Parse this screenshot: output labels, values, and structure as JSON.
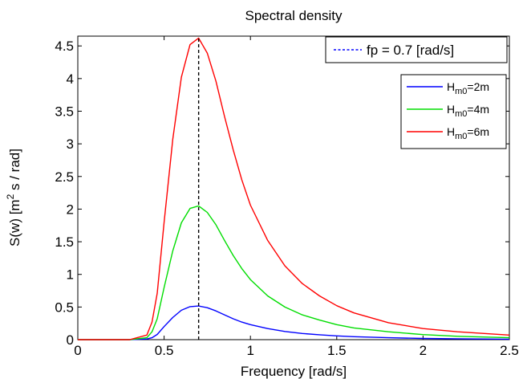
{
  "chart_data": {
    "type": "line",
    "title": "Spectral density",
    "xlabel": "Frequency [rad/s]",
    "ylabel": {
      "prefix": "S(w) [m",
      "sup": "2",
      "suffix": " s / rad]"
    },
    "xlim": [
      0,
      2.5
    ],
    "ylim": [
      0,
      4.65
    ],
    "xticks": [
      0,
      0.5,
      1,
      1.5,
      2,
      2.5
    ],
    "xtick_labels": [
      "0",
      "0.5",
      "1",
      "1.5",
      "2",
      "2.5"
    ],
    "yticks": [
      0,
      0.5,
      1,
      1.5,
      2,
      2.5,
      3,
      3.5,
      4,
      4.5
    ],
    "ytick_labels": [
      "0",
      "0.5",
      "1",
      "1.5",
      "2",
      "2.5",
      "3",
      "3.5",
      "4",
      "4.5"
    ],
    "grid": false,
    "vertical_line": {
      "x": 0.7,
      "label": "fp = 0.7 [rad/s]",
      "color": "#000000",
      "legend_color": "#0000ff",
      "style": "dashed"
    },
    "legend_position": "top-right",
    "x": [
      0.0,
      0.3,
      0.4,
      0.43,
      0.46,
      0.5,
      0.55,
      0.6,
      0.65,
      0.7,
      0.75,
      0.8,
      0.85,
      0.9,
      0.95,
      1.0,
      1.1,
      1.2,
      1.3,
      1.4,
      1.5,
      1.6,
      1.8,
      2.0,
      2.2,
      2.5
    ],
    "series": [
      {
        "name": {
          "base": "H",
          "sub": "m0",
          "tail": "=2m"
        },
        "color": "#0000ff",
        "values": [
          0.0,
          0.0,
          0.01,
          0.03,
          0.08,
          0.2,
          0.34,
          0.45,
          0.505,
          0.515,
          0.49,
          0.44,
          0.38,
          0.32,
          0.27,
          0.23,
          0.17,
          0.125,
          0.095,
          0.075,
          0.058,
          0.046,
          0.029,
          0.019,
          0.013,
          0.007
        ]
      },
      {
        "name": {
          "base": "H",
          "sub": "m0",
          "tail": "=4m"
        },
        "color": "#00dd00",
        "values": [
          0.0,
          0.0,
          0.03,
          0.12,
          0.32,
          0.8,
          1.36,
          1.79,
          2.01,
          2.05,
          1.95,
          1.76,
          1.52,
          1.29,
          1.09,
          0.92,
          0.67,
          0.5,
          0.38,
          0.3,
          0.23,
          0.18,
          0.12,
          0.077,
          0.052,
          0.03
        ]
      },
      {
        "name": {
          "base": "H",
          "sub": "m0",
          "tail": "=6m"
        },
        "color": "#ff0000",
        "values": [
          0.0,
          0.0,
          0.07,
          0.27,
          0.71,
          1.8,
          3.07,
          4.02,
          4.52,
          4.62,
          4.39,
          3.96,
          3.42,
          2.91,
          2.45,
          2.06,
          1.52,
          1.13,
          0.86,
          0.67,
          0.52,
          0.41,
          0.26,
          0.17,
          0.12,
          0.07
        ]
      }
    ]
  }
}
